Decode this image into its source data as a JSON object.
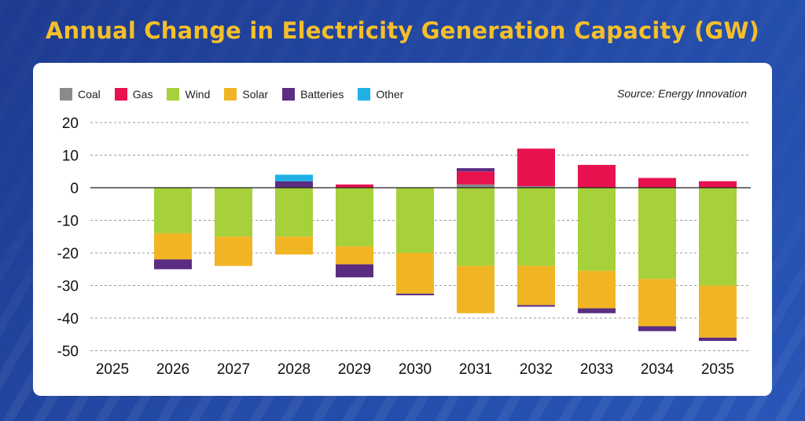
{
  "title": "Annual Change in Electricity Generation Capacity (GW)",
  "source": "Source: Energy Innovation",
  "colors": {
    "Coal": "#8a8a8a",
    "Gas": "#e8124f",
    "Wind": "#a6d13a",
    "Solar": "#f1b524",
    "Batteries": "#5a2d82",
    "Other": "#1fb1e6"
  },
  "chart_data": {
    "type": "bar",
    "stacked": true,
    "categories": [
      "2025",
      "2026",
      "2027",
      "2028",
      "2029",
      "2030",
      "2031",
      "2032",
      "2033",
      "2034",
      "2035"
    ],
    "series": [
      {
        "name": "Coal",
        "values": [
          0,
          0,
          0,
          0,
          0,
          0,
          1,
          0.5,
          0,
          0,
          0
        ]
      },
      {
        "name": "Gas",
        "values": [
          0,
          0,
          0,
          0,
          1,
          0,
          4,
          11.5,
          7,
          3,
          2
        ]
      },
      {
        "name": "Wind",
        "values": [
          0,
          -14,
          -15,
          -15,
          -18,
          -20,
          -24,
          -24,
          -25.5,
          -28,
          -30
        ]
      },
      {
        "name": "Solar",
        "values": [
          0,
          -8,
          -9,
          -5.5,
          -5.5,
          -12.5,
          -14.5,
          -12,
          -11.5,
          -14.5,
          -16
        ]
      },
      {
        "name": "Batteries",
        "values": [
          0,
          -3,
          0,
          2,
          -4,
          -0.5,
          1,
          -0.5,
          -1.5,
          -1.5,
          -1
        ]
      },
      {
        "name": "Other",
        "values": [
          0,
          0,
          0,
          2,
          0,
          0,
          0,
          0,
          0,
          0,
          0
        ]
      }
    ],
    "yticks": [
      20,
      10,
      0,
      -10,
      -20,
      -30,
      -40,
      -50
    ],
    "ylim": [
      -50,
      20
    ],
    "legend": "top-left",
    "grid": "horizontal dashed"
  }
}
